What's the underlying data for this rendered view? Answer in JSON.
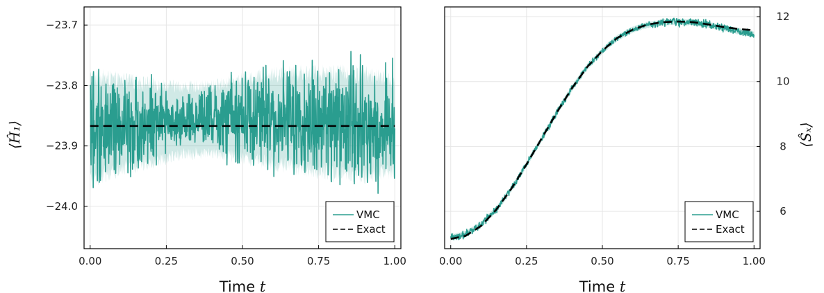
{
  "colors": {
    "vmc": "#2a9d8f",
    "exact": "#000000",
    "band": "#2a9d8f",
    "grid": "#e6e6e6",
    "axis": "#000000"
  },
  "chart_data": [
    {
      "type": "line",
      "xlabel_prefix": "Time ",
      "xlabel_var": "t",
      "ylabel": "⟨Ĥ₁⟩",
      "ylabel_side": "left",
      "xlim": [
        -0.02,
        1.02
      ],
      "ylim": [
        -24.07,
        -23.67
      ],
      "xticks": [
        0.0,
        0.25,
        0.5,
        0.75,
        1.0
      ],
      "xtick_labels": [
        "0.00",
        "0.25",
        "0.50",
        "0.75",
        "1.00"
      ],
      "yticks": [
        -24.0,
        -23.9,
        -23.8,
        -23.7
      ],
      "ytick_labels": [
        "−24.0",
        "−23.9",
        "−23.8",
        "−23.7"
      ],
      "grid": true,
      "legend": {
        "position": "bottom-right",
        "entries": [
          "VMC",
          "Exact"
        ]
      },
      "series": [
        {
          "name": "VMC",
          "style": "noisy-solid",
          "x": [
            0.0,
            0.1,
            0.2,
            0.3,
            0.4,
            0.5,
            0.6,
            0.7,
            0.8,
            0.9,
            1.0
          ],
          "y": [
            -23.87,
            -23.865,
            -23.862,
            -23.858,
            -23.856,
            -23.855,
            -23.856,
            -23.858,
            -23.862,
            -23.865,
            -23.868
          ],
          "noise": [
            0.06,
            0.05,
            0.04,
            0.025,
            0.03,
            0.045,
            0.05,
            0.055,
            0.06,
            0.06,
            0.055
          ],
          "band": [
            0.09,
            0.08,
            0.07,
            0.06,
            0.06,
            0.07,
            0.08,
            0.085,
            0.09,
            0.09,
            0.08
          ]
        },
        {
          "name": "Exact",
          "style": "dashed",
          "x": [
            0.0,
            1.0
          ],
          "y": [
            -23.867,
            -23.867
          ]
        }
      ]
    },
    {
      "type": "line",
      "xlabel_prefix": "Time ",
      "xlabel_var": "t",
      "ylabel": "⟨Ŝₓ⟩",
      "ylabel_side": "right",
      "xlim": [
        -0.02,
        1.02
      ],
      "ylim": [
        4.85,
        12.3
      ],
      "xticks": [
        0.0,
        0.25,
        0.5,
        0.75,
        1.0
      ],
      "xtick_labels": [
        "0.00",
        "0.25",
        "0.50",
        "0.75",
        "1.00"
      ],
      "yticks": [
        6,
        8,
        10,
        12
      ],
      "ytick_labels": [
        "6",
        "8",
        "10",
        "12"
      ],
      "grid": true,
      "legend": {
        "position": "bottom-right",
        "entries": [
          "VMC",
          "Exact"
        ]
      },
      "series": [
        {
          "name": "VMC",
          "style": "noisy-solid",
          "x": [
            0.0,
            0.05,
            0.1,
            0.15,
            0.2,
            0.25,
            0.3,
            0.35,
            0.4,
            0.45,
            0.5,
            0.55,
            0.6,
            0.65,
            0.7,
            0.75,
            0.8,
            0.85,
            0.9,
            0.95,
            1.0
          ],
          "y": [
            5.2,
            5.3,
            5.6,
            6.05,
            6.7,
            7.45,
            8.25,
            9.05,
            9.8,
            10.45,
            10.95,
            11.35,
            11.6,
            11.75,
            11.82,
            11.85,
            11.82,
            11.75,
            11.65,
            11.55,
            11.45
          ],
          "noise": [
            0.07,
            0.07,
            0.07,
            0.06,
            0.06,
            0.06,
            0.06,
            0.06,
            0.05,
            0.05,
            0.05,
            0.05,
            0.05,
            0.06,
            0.07,
            0.08,
            0.08,
            0.08,
            0.08,
            0.08,
            0.08
          ],
          "band": [
            0.1,
            0.1,
            0.1,
            0.1,
            0.1,
            0.1,
            0.1,
            0.1,
            0.1,
            0.1,
            0.1,
            0.1,
            0.1,
            0.1,
            0.1,
            0.1,
            0.1,
            0.1,
            0.1,
            0.1,
            0.1
          ]
        },
        {
          "name": "Exact",
          "style": "dashed",
          "x": [
            0.0,
            0.05,
            0.1,
            0.15,
            0.2,
            0.25,
            0.3,
            0.35,
            0.4,
            0.45,
            0.5,
            0.55,
            0.6,
            0.65,
            0.7,
            0.75,
            0.8,
            0.85,
            0.9,
            0.95,
            1.0
          ],
          "y": [
            5.15,
            5.25,
            5.55,
            6.05,
            6.7,
            7.45,
            8.25,
            9.05,
            9.8,
            10.45,
            10.95,
            11.35,
            11.6,
            11.76,
            11.83,
            11.85,
            11.83,
            11.76,
            11.68,
            11.62,
            11.58
          ]
        }
      ]
    }
  ]
}
